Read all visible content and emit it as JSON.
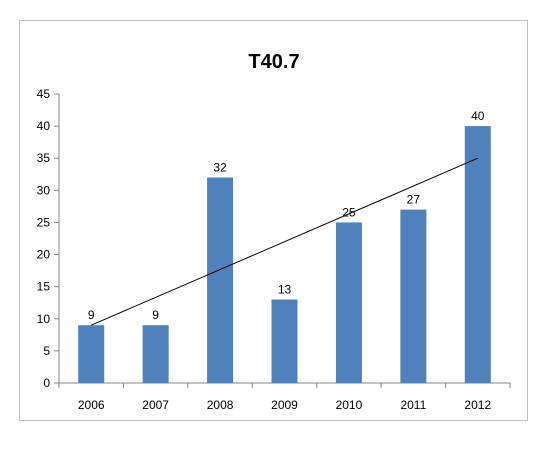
{
  "chart_data": {
    "type": "bar",
    "title": "T40.7",
    "categories": [
      "2006",
      "2007",
      "2008",
      "2009",
      "2010",
      "2011",
      "2012"
    ],
    "values": [
      9,
      9,
      32,
      13,
      25,
      27,
      40
    ],
    "data_labels": [
      "9",
      "9",
      "32",
      "13",
      "25",
      "27",
      "40"
    ],
    "ylim": [
      0,
      45
    ],
    "yticks": [
      "0",
      "5",
      "10",
      "15",
      "20",
      "25",
      "30",
      "35",
      "40",
      "45"
    ],
    "xlabel": "",
    "ylabel": "",
    "grid": false,
    "legend": "none",
    "trendline": {
      "type": "linear",
      "start": {
        "x": "2006",
        "y": 9
      },
      "end": {
        "x": "2012",
        "y": 35
      },
      "color": "#000000"
    },
    "bar_color": "#4f81bd",
    "axis_color": "#868686"
  }
}
